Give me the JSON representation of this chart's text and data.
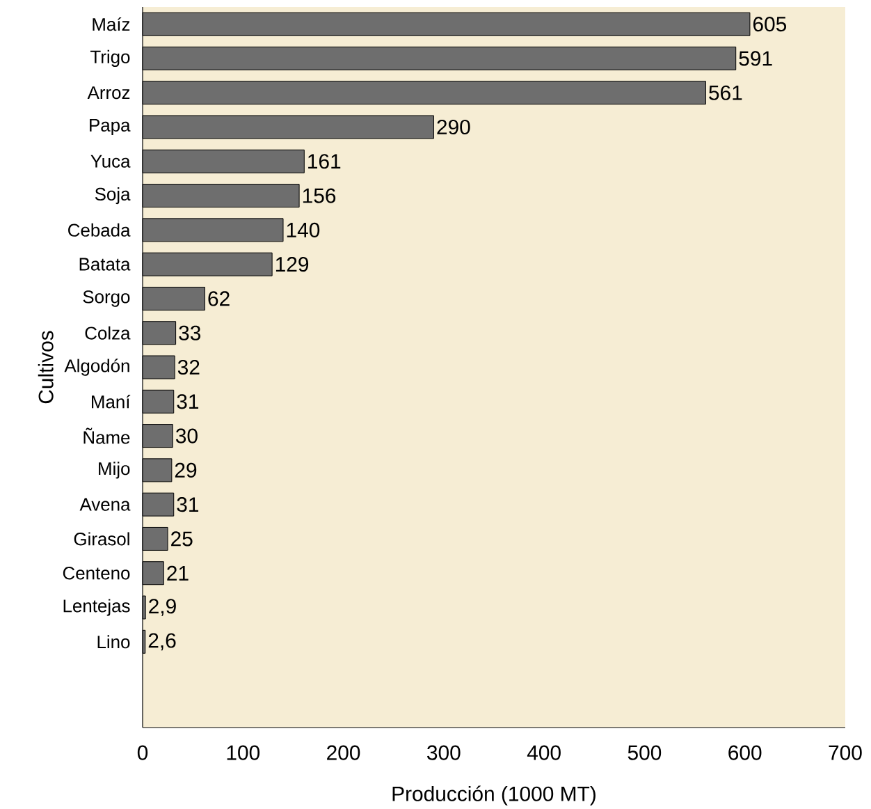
{
  "chart_data": {
    "type": "bar",
    "orientation": "horizontal",
    "xlabel": "Producción (1000 MT)",
    "ylabel": "Cultivos",
    "categories": [
      "Maíz",
      "Trigo",
      "Arroz",
      "Papa",
      "Yuca",
      "Soja",
      "Cebada",
      "Batata",
      "Sorgo",
      "Colza",
      "Algodón",
      "Maní",
      "Ñame",
      "Mijo",
      "Avena",
      "Girasol",
      "Centeno",
      "Lentejas",
      "Lino"
    ],
    "values": [
      605,
      591,
      561,
      290,
      161,
      156,
      140,
      129,
      62,
      33,
      32,
      31,
      30,
      29,
      31,
      25,
      21,
      2.9,
      2.6
    ],
    "value_labels": [
      "605",
      "591",
      "561",
      "290",
      "161",
      "156",
      "140",
      "129",
      "62",
      "33",
      "32",
      "31",
      "30",
      "29",
      "31",
      "25",
      "21",
      "2,9",
      "2,6"
    ],
    "color": "#6e6e6e",
    "xlim": [
      0,
      700
    ],
    "xticks": [
      0,
      100,
      200,
      300,
      400,
      500,
      600,
      700
    ]
  }
}
